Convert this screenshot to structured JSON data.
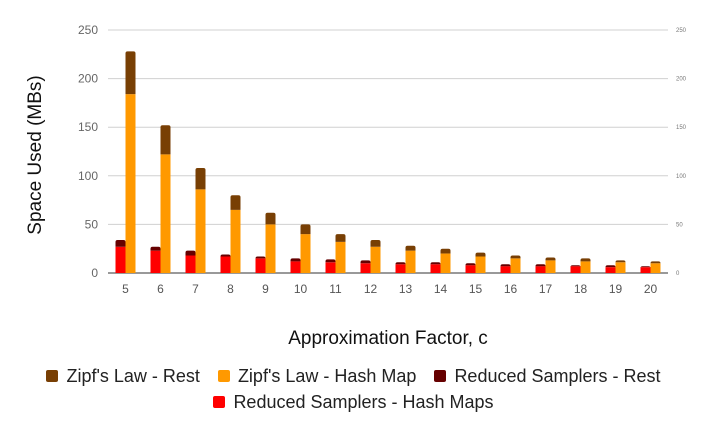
{
  "chart_data": {
    "type": "bar",
    "stacked": true,
    "categories": [
      "5",
      "6",
      "7",
      "8",
      "9",
      "10",
      "11",
      "12",
      "13",
      "14",
      "15",
      "16",
      "17",
      "18",
      "19",
      "20"
    ],
    "ylabel": "Space Used (MBs)",
    "xlabel": "Approximation Factor, c",
    "ylim": [
      0,
      250
    ],
    "yticks": [
      0,
      50,
      100,
      150,
      200,
      250
    ],
    "secondary_yticks": [
      0,
      50,
      100,
      150,
      200,
      250
    ],
    "grid": true,
    "legend_position": "bottom",
    "series": [
      {
        "name": "Reduced Samplers - Hash Maps",
        "group": "reduced",
        "color": "#ff0000",
        "values": [
          27,
          23,
          18,
          17,
          15,
          12,
          11,
          10,
          9,
          9,
          8,
          7,
          7,
          7,
          6,
          6
        ]
      },
      {
        "name": "Reduced Samplers - Rest",
        "group": "reduced",
        "color": "#660000",
        "values": [
          7,
          4,
          5,
          2,
          2,
          3,
          3,
          3,
          2,
          2,
          2,
          2,
          2,
          1,
          2,
          1
        ]
      },
      {
        "name": "Zipf's Law - Hash Map",
        "group": "zipf",
        "color": "#ff9900",
        "values": [
          184,
          122,
          86,
          65,
          50,
          40,
          32,
          27,
          23,
          20,
          17,
          15,
          13,
          12,
          11,
          10
        ]
      },
      {
        "name": "Zipf's Law - Rest",
        "group": "zipf",
        "color": "#783f04",
        "values": [
          44,
          30,
          22,
          15,
          12,
          10,
          8,
          7,
          5,
          5,
          4,
          3,
          3,
          3,
          2,
          2
        ]
      }
    ]
  },
  "legend": {
    "row1": [
      "Zipf's Law - Rest",
      "Zipf's Law - Hash Map",
      "Reduced Samplers - Rest"
    ],
    "row2": [
      "Reduced Samplers - Hash Maps"
    ],
    "colors": {
      "Zipf's Law - Rest": "#783f04",
      "Zipf's Law - Hash Map": "#ff9900",
      "Reduced Samplers - Rest": "#660000",
      "Reduced Samplers - Hash Maps": "#ff0000"
    }
  }
}
